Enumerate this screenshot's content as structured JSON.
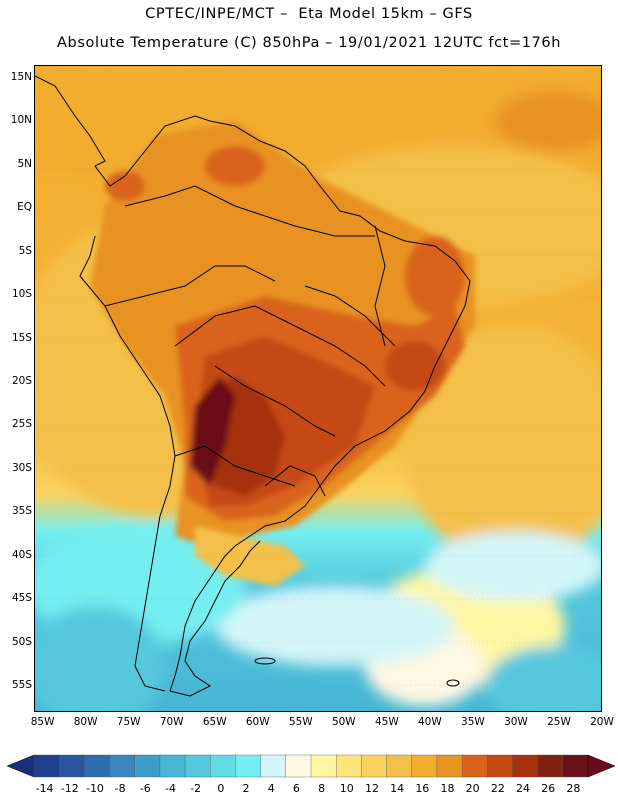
{
  "header": {
    "title_line1": "CPTEC/INPE/MCT –  Eta Model 15km – GFS",
    "title_line2": "Absolute Temperature (C) 850hPa – 19/01/2021 12UTC fct=176h"
  },
  "map": {
    "variable": "Absolute Temperature (C) at 850hPa",
    "region": "South America",
    "lat_labels": [
      "15N",
      "10N",
      "5N",
      "EQ",
      "5S",
      "10S",
      "15S",
      "20S",
      "25S",
      "30S",
      "35S",
      "40S",
      "45S",
      "50S",
      "55S"
    ],
    "lat_values": [
      15,
      10,
      5,
      0,
      -5,
      -10,
      -15,
      -20,
      -25,
      -30,
      -35,
      -40,
      -45,
      -50,
      -55
    ],
    "lon_labels": [
      "85W",
      "80W",
      "75W",
      "70W",
      "65W",
      "60W",
      "55W",
      "50W",
      "45W",
      "40W",
      "35W",
      "30W",
      "25W",
      "20W"
    ],
    "lon_values": [
      -85,
      -80,
      -75,
      -70,
      -65,
      -60,
      -55,
      -50,
      -45,
      -40,
      -35,
      -30,
      -25,
      -20
    ],
    "extent": {
      "lon_min": -86,
      "lon_max": -20,
      "lat_min": -58,
      "lat_max": 16.5
    }
  },
  "colorbar": {
    "labels": [
      "-14",
      "-12",
      "-10",
      "-8",
      "-6",
      "-4",
      "-2",
      "0",
      "2",
      "4",
      "6",
      "8",
      "10",
      "12",
      "14",
      "16",
      "18",
      "20",
      "22",
      "24",
      "26",
      "28"
    ],
    "colors": [
      "#1f3f8f",
      "#2a56a0",
      "#2e6db0",
      "#3a85be",
      "#3f9ec8",
      "#47b5d3",
      "#54c8de",
      "#63dae8",
      "#74eef1",
      "#d3f5f8",
      "#fff8e3",
      "#fff6a3",
      "#ffe47c",
      "#fad35e",
      "#f4c04a",
      "#f2ac2e",
      "#e89224",
      "#d9631a",
      "#c44a14",
      "#a5310e",
      "#832012",
      "#6a1018"
    ],
    "low_arrow_color": "#1a2f7a",
    "high_arrow_color": "#6a0a1a"
  },
  "icons": {
    "colorbar_low_arrow": "triangle-left",
    "colorbar_high_arrow": "triangle-right"
  }
}
